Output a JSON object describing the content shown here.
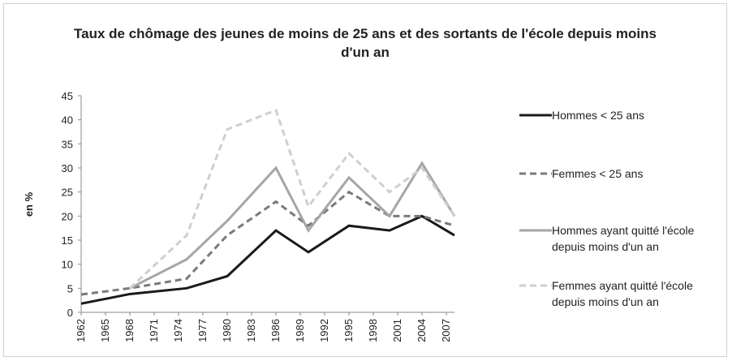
{
  "chart_data": {
    "type": "line",
    "title": "Taux de chômage des jeunes de moins de 25 ans et des sortants de l'école depuis moins d'un an",
    "y_label": "en %",
    "x": [
      1962,
      1968,
      1975,
      1980,
      1986,
      1990,
      1995,
      2000,
      2004,
      2008
    ],
    "xlim": [
      1962,
      2008
    ],
    "xticks": [
      1962,
      1965,
      1968,
      1971,
      1974,
      1977,
      1980,
      1983,
      1986,
      1989,
      1992,
      1995,
      1998,
      2001,
      2004,
      2007
    ],
    "ylim": [
      0,
      45
    ],
    "yticks": [
      0,
      5,
      10,
      15,
      20,
      25,
      30,
      35,
      40,
      45
    ],
    "series": [
      {
        "name": "Hommes < 25 ans",
        "color": "#1a1a1a",
        "dash": false,
        "values": [
          1.8,
          3.8,
          5,
          7.5,
          17,
          12.5,
          18,
          17,
          20,
          16
        ]
      },
      {
        "name": "Femmes < 25 ans",
        "color": "#7a7a7a",
        "dash": true,
        "values": [
          3.7,
          5,
          7,
          16,
          23,
          18,
          25,
          20,
          20,
          18
        ]
      },
      {
        "name": "Hommes ayant quitté l'école depuis moins d'un an",
        "color": "#a6a6a6",
        "dash": false,
        "values": [
          null,
          5,
          11,
          19,
          30,
          17,
          28,
          20,
          31,
          20
        ]
      },
      {
        "name": "Femmes ayant quitté l'école depuis moins d'un an",
        "color": "#cfcfcf",
        "dash": true,
        "values": [
          null,
          5,
          16,
          38,
          42,
          22,
          33,
          25,
          30,
          20
        ]
      }
    ]
  }
}
